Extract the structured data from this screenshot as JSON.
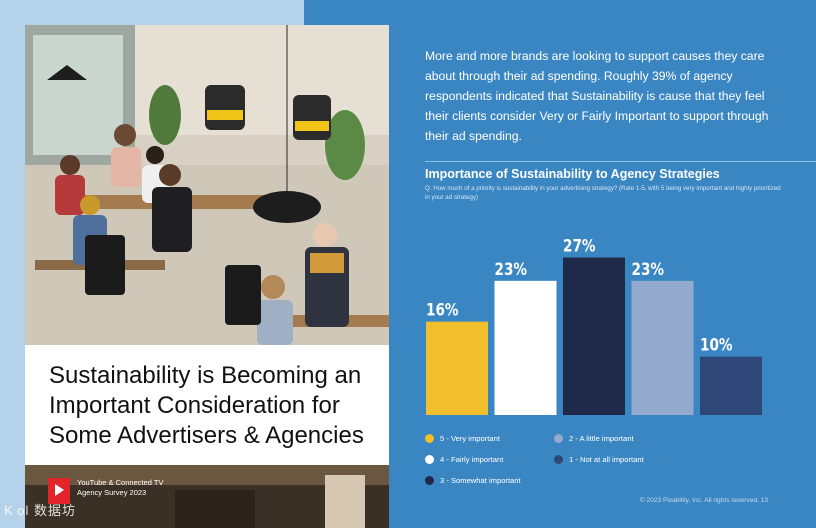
{
  "left": {
    "headline_lines": [
      "Sustainability is Becoming an",
      "Important Consideration for",
      "Some Advertisers & Agencies"
    ],
    "survey_line1": "YouTube & Connected TV",
    "survey_line2": "Agency Survey 2023",
    "watermark": "K ol 数据坊"
  },
  "right": {
    "intro": "More and more brands are looking to support causes they care about through their ad spending. Roughly 39% of agency respondents indicated that Sustainability is cause that they feel their clients consider Very or Fairly Important to support through their ad spending.",
    "chart_title": "Importance of Sustainability to Agency Strategies",
    "chart_question": "Q. How much of a priority is sustainability in your advertising strategy? (Rate 1-5, with 5 being very important and highly prioritized in your ad strategy)",
    "footer": "© 2023 Pixability, Inc. All rights reserved.   13"
  },
  "chart_data": {
    "type": "bar",
    "categories": [
      "5 - Very important",
      "4 - Fairly important",
      "3 - Somewhat important",
      "2 - A little important",
      "1 - Not at all important"
    ],
    "values": [
      16,
      23,
      27,
      23,
      10
    ],
    "value_labels": [
      "16%",
      "23%",
      "27%",
      "23%",
      "10%"
    ],
    "colors": [
      "#f2bf2c",
      "#ffffff",
      "#1f2a4b",
      "#93a9cd",
      "#2f4678"
    ],
    "ylim": [
      0,
      30
    ],
    "legend_position": "bottom"
  }
}
